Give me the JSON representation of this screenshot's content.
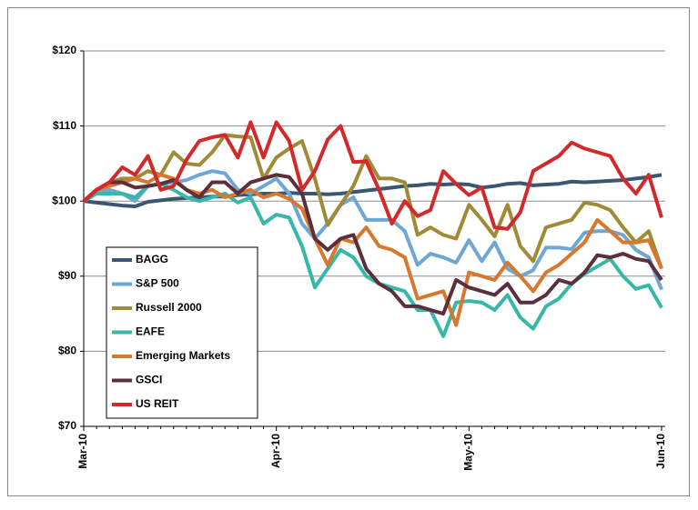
{
  "chart_data": {
    "type": "line",
    "categories": [
      "Mar-10",
      null,
      null,
      null,
      null,
      null,
      null,
      null,
      null,
      null,
      null,
      null,
      null,
      null,
      null,
      "Apr-10",
      null,
      null,
      null,
      null,
      null,
      null,
      null,
      null,
      null,
      null,
      null,
      null,
      null,
      null,
      "May-10",
      null,
      null,
      null,
      null,
      null,
      null,
      null,
      null,
      null,
      null,
      null,
      null,
      null,
      null,
      "Jun-10"
    ],
    "ylim": [
      70,
      120
    ],
    "yticks": [
      {
        "value": 70,
        "label": "$70"
      },
      {
        "value": 80,
        "label": "$80"
      },
      {
        "value": 90,
        "label": "$90"
      },
      {
        "value": 100,
        "label": "$100"
      },
      {
        "value": 110,
        "label": "$110"
      },
      {
        "value": 120,
        "label": "$120"
      }
    ],
    "grid": true,
    "legend": "lower-left",
    "series": [
      {
        "name": "BAGG",
        "color": "#3b5672",
        "values": [
          100,
          99.8,
          99.6,
          99.4,
          99.3,
          99.9,
          100.1,
          100.3,
          100.4,
          100.5,
          100.6,
          100.6,
          100.8,
          100.9,
          101,
          101,
          101.1,
          101,
          101,
          100.9,
          101,
          101.2,
          101.4,
          101.6,
          101.8,
          102,
          102.1,
          102.3,
          102.2,
          102.3,
          102.2,
          101.8,
          102,
          102.3,
          102.4,
          102.1,
          102.2,
          102.3,
          102.6,
          102.5,
          102.6,
          102.7,
          102.8,
          103,
          103.2,
          103.5
        ]
      },
      {
        "name": "S&P 500",
        "color": "#6ea6d4",
        "values": [
          100,
          101,
          101.5,
          101,
          100,
          102,
          102.3,
          102.5,
          102.8,
          103.5,
          104,
          103.7,
          101.5,
          101,
          102,
          103,
          101,
          97,
          95,
          97,
          99.5,
          100.5,
          97.5,
          97.5,
          97.5,
          96,
          91.5,
          93,
          92.5,
          91.8,
          94.8,
          92,
          94.5,
          91,
          90,
          90.8,
          93.8,
          93.8,
          93.6,
          95.8,
          96,
          96,
          95.5,
          93.5,
          92.5,
          88.2
        ]
      },
      {
        "name": "Russell 2000",
        "color": "#a08a36",
        "values": [
          100,
          101.5,
          102.5,
          103,
          103,
          104,
          103.5,
          106.5,
          105,
          104.8,
          106.5,
          108.8,
          108.6,
          108.5,
          103,
          105.8,
          107,
          108,
          103,
          96.8,
          99.5,
          102,
          106,
          103,
          103,
          102.5,
          95.5,
          96.5,
          95.5,
          95,
          99.5,
          97.5,
          95.3,
          99.5,
          94,
          92,
          96.5,
          97,
          97.5,
          99.8,
          99.5,
          98.8,
          96.5,
          94.5,
          96,
          91
        ]
      },
      {
        "name": "EAFE",
        "color": "#36b7a7",
        "values": [
          100,
          101,
          101,
          101,
          100.5,
          102,
          102.3,
          101.5,
          100.5,
          100,
          100.5,
          101,
          99.8,
          100.5,
          97,
          98.2,
          97.8,
          94,
          88.5,
          91,
          93.5,
          92.5,
          90,
          89,
          88.5,
          88,
          85.5,
          85.5,
          82,
          86.5,
          86.7,
          86.5,
          85.5,
          87.5,
          84.5,
          83,
          86,
          87,
          89,
          90.3,
          91.3,
          92.3,
          90,
          88.3,
          88.8,
          85.8
        ]
      },
      {
        "name": "Emerging Markets",
        "color": "#d8772e",
        "values": [
          100,
          101.5,
          102,
          102.5,
          103,
          102.5,
          103.5,
          103,
          101.5,
          101,
          101.5,
          100.5,
          101,
          101.5,
          100.5,
          101,
          100.3,
          99,
          95,
          91.5,
          95,
          94.5,
          96.5,
          94,
          93.5,
          92.5,
          87,
          87.5,
          88,
          83.5,
          90.5,
          90,
          89.5,
          91.8,
          90,
          88,
          90.5,
          91.5,
          93,
          94.5,
          97.5,
          96,
          94.5,
          94.5,
          94.8,
          91
        ]
      },
      {
        "name": "GSCI",
        "color": "#5b2f3b",
        "values": [
          100,
          101.5,
          102.5,
          102.5,
          101.8,
          102,
          102.3,
          102.8,
          101.5,
          100.5,
          102.5,
          102.5,
          101,
          102.5,
          103,
          103.5,
          103.2,
          101,
          95,
          93.5,
          95,
          95.5,
          91,
          89,
          88,
          86,
          86,
          85.5,
          85,
          89.5,
          88.5,
          88,
          87.5,
          89,
          86.5,
          86.5,
          87.5,
          89.5,
          89,
          90.5,
          92.8,
          92.5,
          93,
          92.3,
          92,
          89.5
        ]
      },
      {
        "name": "US REIT",
        "color": "#d3292a",
        "values": [
          100,
          101.5,
          102.5,
          104.5,
          103.5,
          106,
          101.5,
          102,
          105.5,
          108,
          108.5,
          108.8,
          105.8,
          110.5,
          105.8,
          110.5,
          108,
          101.5,
          104,
          108.2,
          110,
          105.2,
          105.3,
          101.5,
          97,
          100,
          98,
          98.8,
          104,
          102.3,
          100.8,
          101.8,
          96.5,
          96.3,
          98.5,
          104,
          105,
          106,
          107.8,
          107,
          106.5,
          106,
          103,
          101,
          103.5,
          97.8
        ]
      }
    ]
  }
}
